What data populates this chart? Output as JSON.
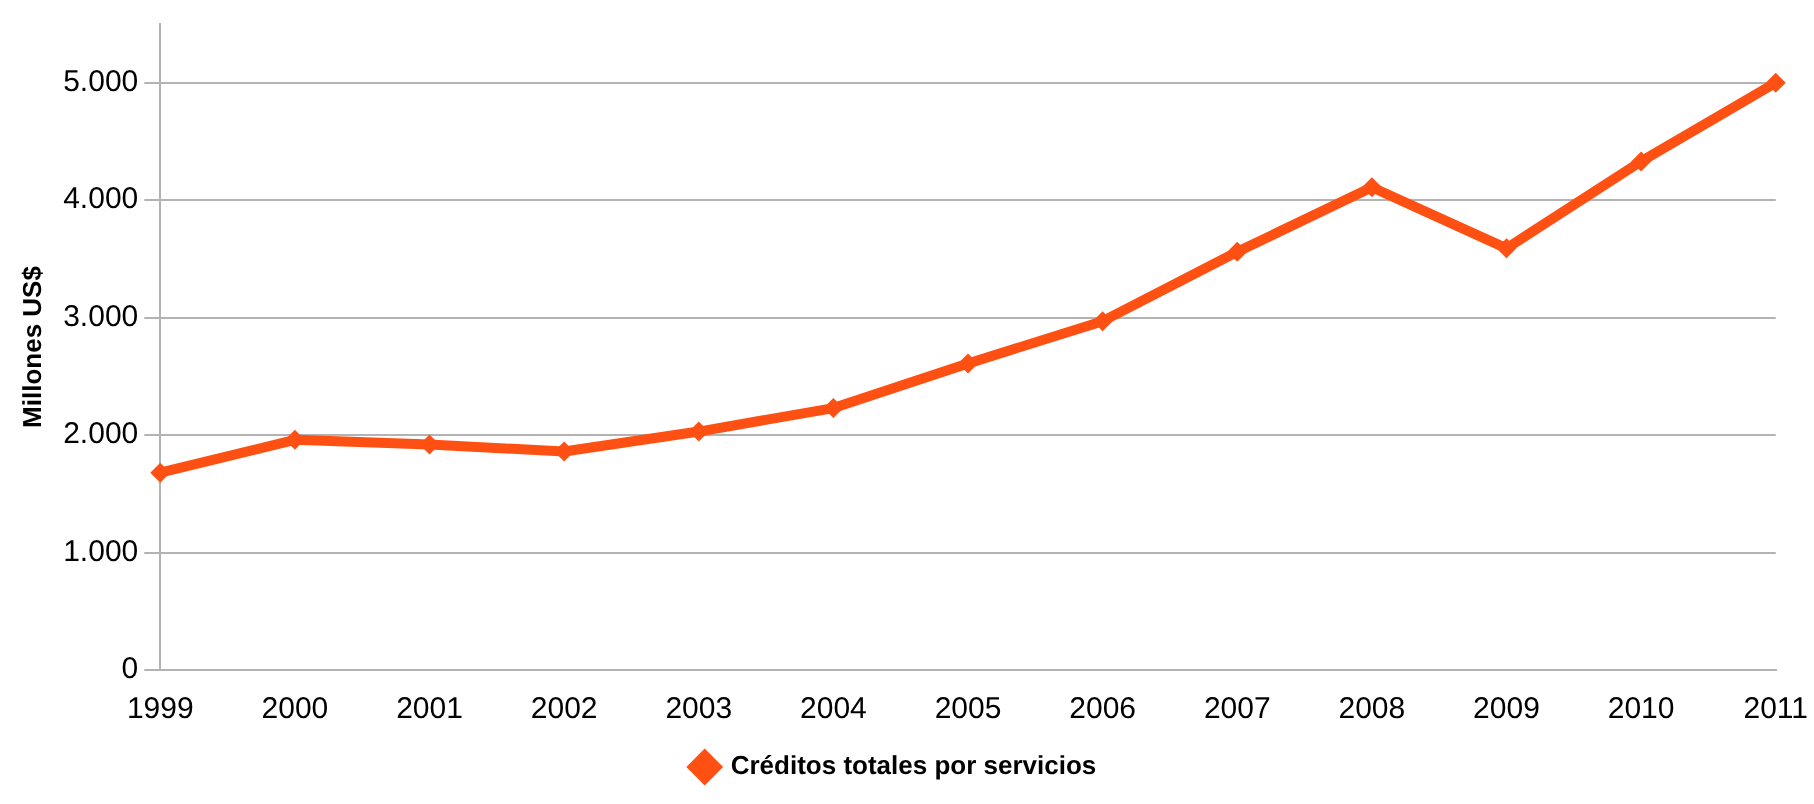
{
  "chart_data": {
    "type": "line",
    "ylabel": "Millones US$",
    "categories": [
      "1999",
      "2000",
      "2001",
      "2002",
      "2003",
      "2004",
      "2005",
      "2006",
      "2007",
      "2008",
      "2009",
      "2010",
      "2011"
    ],
    "series": [
      {
        "name": "Créditos totales por servicios",
        "color": "#ff5014",
        "values": [
          1680,
          1960,
          1920,
          1860,
          2030,
          2230,
          2610,
          2970,
          3560,
          4110,
          3590,
          4330,
          5000
        ]
      }
    ],
    "ylim": [
      0,
      5500
    ],
    "yticks": [
      0,
      {
        "value": 1000,
        "label": "1.000"
      },
      {
        "value": 2000,
        "label": "2.000"
      },
      {
        "value": 3000,
        "label": "3.000"
      },
      {
        "value": 4000,
        "label": "4.000"
      },
      {
        "value": 5000,
        "label": "5.000"
      }
    ],
    "grid": "y",
    "legend": "bottom",
    "marker": "diamond",
    "line_style": "solid"
  }
}
